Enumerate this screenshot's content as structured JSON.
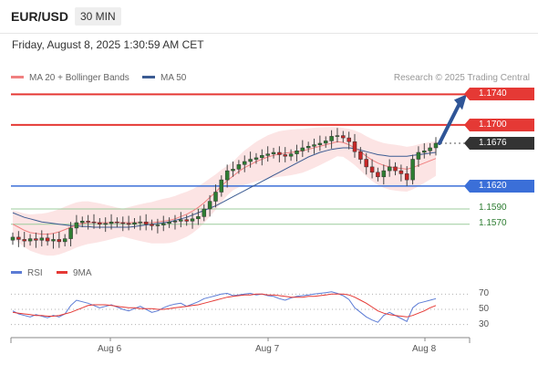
{
  "header": {
    "symbol": "EUR/USD",
    "timeframe": "30 MIN"
  },
  "datetime": "Friday, August 8, 2025 1:30:59 AM CET",
  "legend": {
    "ma20_label": "MA 20 + Bollinger Bands",
    "ma50_label": "MA 50",
    "ma20_color": "#f08080",
    "ma50_color": "#3b5b92"
  },
  "credit": "Research © 2025 Trading Central",
  "rsi_legend": {
    "rsi_label": "RSI",
    "ma9_label": "9MA",
    "rsi_color": "#5b7bd5",
    "ma9_color": "#e53935"
  },
  "chart_data": [
    {
      "type": "candlestick",
      "instrument": "EUR/USD",
      "interval": "30 MIN",
      "x_ticks": [
        "Aug 6",
        "Aug 7",
        "Aug 8"
      ],
      "ylim": [
        1.1535,
        1.175
      ],
      "resistance_levels": [
        1.174,
        1.17
      ],
      "support_levels": [
        1.162
      ],
      "target_levels": [
        1.159,
        1.157
      ],
      "last_price": 1.1676,
      "labels": {
        "r2": "1.1740",
        "r1": "1.1700",
        "last": "1.1676",
        "s1": "1.1620",
        "s2": "1.1590",
        "s3": "1.1570"
      },
      "close_path": [
        1.1553,
        1.155,
        1.1548,
        1.1551,
        1.1549,
        1.1552,
        1.1548,
        1.155,
        1.1547,
        1.1551,
        1.1565,
        1.1572,
        1.1574,
        1.1573,
        1.1572,
        1.157,
        1.1571,
        1.1573,
        1.1572,
        1.1571,
        1.157,
        1.1572,
        1.1573,
        1.157,
        1.1568,
        1.1569,
        1.1571,
        1.1573,
        1.1574,
        1.1576,
        1.1574,
        1.1577,
        1.158,
        1.159,
        1.16,
        1.1612,
        1.1628,
        1.164,
        1.1642,
        1.1648,
        1.1652,
        1.1655,
        1.1657,
        1.166,
        1.1662,
        1.1664,
        1.1661,
        1.1659,
        1.1662,
        1.1666,
        1.167,
        1.1672,
        1.1674,
        1.1676,
        1.1679,
        1.1685,
        1.1686,
        1.1683,
        1.1678,
        1.1665,
        1.1655,
        1.1645,
        1.1638,
        1.1632,
        1.164,
        1.1645,
        1.164,
        1.1636,
        1.1628,
        1.1655,
        1.1664,
        1.1666,
        1.167,
        1.1676
      ],
      "ma20": [
        1.157,
        1.1566,
        1.1562,
        1.1559,
        1.1558,
        1.1557,
        1.1557,
        1.1558,
        1.156,
        1.1563,
        1.1566,
        1.1569,
        1.1571,
        1.1572,
        1.1572,
        1.1572,
        1.1572,
        1.1572,
        1.1572,
        1.1572,
        1.1572,
        1.1572,
        1.1572,
        1.1572,
        1.1572,
        1.1573,
        1.1574,
        1.1575,
        1.1577,
        1.158,
        1.1583,
        1.1587,
        1.1592,
        1.1598,
        1.1605,
        1.1612,
        1.162,
        1.1627,
        1.1633,
        1.1639,
        1.1644,
        1.1648,
        1.1652,
        1.1655,
        1.1658,
        1.166,
        1.1662,
        1.1663,
        1.1664,
        1.1665,
        1.1666,
        1.1668,
        1.167,
        1.1672,
        1.1674,
        1.1676,
        1.1678,
        1.1677,
        1.1674,
        1.167,
        1.1665,
        1.1659,
        1.1654,
        1.165,
        1.1647,
        1.1645,
        1.1644,
        1.1643,
        1.1642,
        1.1644,
        1.1647,
        1.165,
        1.1653,
        1.1656
      ],
      "ma50": [
        1.1585,
        1.1582,
        1.1579,
        1.1577,
        1.1575,
        1.1573,
        1.1572,
        1.1571,
        1.157,
        1.1569,
        1.1568,
        1.1568,
        1.1567,
        1.1567,
        1.1566,
        1.1566,
        1.1566,
        1.1566,
        1.1566,
        1.1566,
        1.1566,
        1.1567,
        1.1568,
        1.1569,
        1.157,
        1.1571,
        1.1572,
        1.1573,
        1.1575,
        1.1577,
        1.1579,
        1.1582,
        1.1585,
        1.1588,
        1.1591,
        1.1594,
        1.1598,
        1.1602,
        1.1606,
        1.161,
        1.1614,
        1.1618,
        1.1622,
        1.1626,
        1.163,
        1.1634,
        1.1638,
        1.1642,
        1.1646,
        1.165,
        1.1654,
        1.1658,
        1.1661,
        1.1664,
        1.1666,
        1.1668,
        1.1669,
        1.167,
        1.167,
        1.1669,
        1.1667,
        1.1665,
        1.1663,
        1.1661,
        1.166,
        1.1659,
        1.1659,
        1.1659,
        1.1659,
        1.166,
        1.1661,
        1.1662,
        1.1663,
        1.1664
      ],
      "projection": {
        "from": 1.1676,
        "to": 1.174
      }
    },
    {
      "type": "line",
      "name": "RSI",
      "ylim": [
        20,
        80
      ],
      "y_ticks": [
        70,
        50,
        30
      ],
      "rsi": [
        48,
        44,
        42,
        40,
        43,
        41,
        39,
        42,
        40,
        44,
        55,
        62,
        60,
        58,
        55,
        52,
        54,
        56,
        53,
        50,
        48,
        51,
        54,
        50,
        46,
        48,
        52,
        55,
        57,
        58,
        54,
        57,
        60,
        64,
        66,
        68,
        70,
        71,
        68,
        69,
        70,
        71,
        69,
        70,
        68,
        67,
        64,
        62,
        65,
        67,
        68,
        69,
        70,
        71,
        72,
        73,
        71,
        68,
        63,
        52,
        46,
        40,
        36,
        33,
        42,
        46,
        42,
        38,
        34,
        52,
        58,
        60,
        62,
        64
      ],
      "ma9": [
        46,
        45,
        44,
        43,
        42,
        42,
        41,
        41,
        42,
        44,
        46,
        49,
        52,
        55,
        56,
        56,
        56,
        55,
        54,
        53,
        52,
        52,
        51,
        51,
        51,
        50,
        50,
        51,
        52,
        53,
        54,
        55,
        56,
        58,
        60,
        62,
        64,
        66,
        67,
        68,
        69,
        69,
        70,
        70,
        69,
        69,
        68,
        67,
        66,
        66,
        66,
        67,
        67,
        68,
        69,
        70,
        70,
        70,
        69,
        66,
        62,
        58,
        53,
        48,
        45,
        43,
        42,
        41,
        40,
        42,
        45,
        48,
        52,
        55
      ]
    }
  ]
}
